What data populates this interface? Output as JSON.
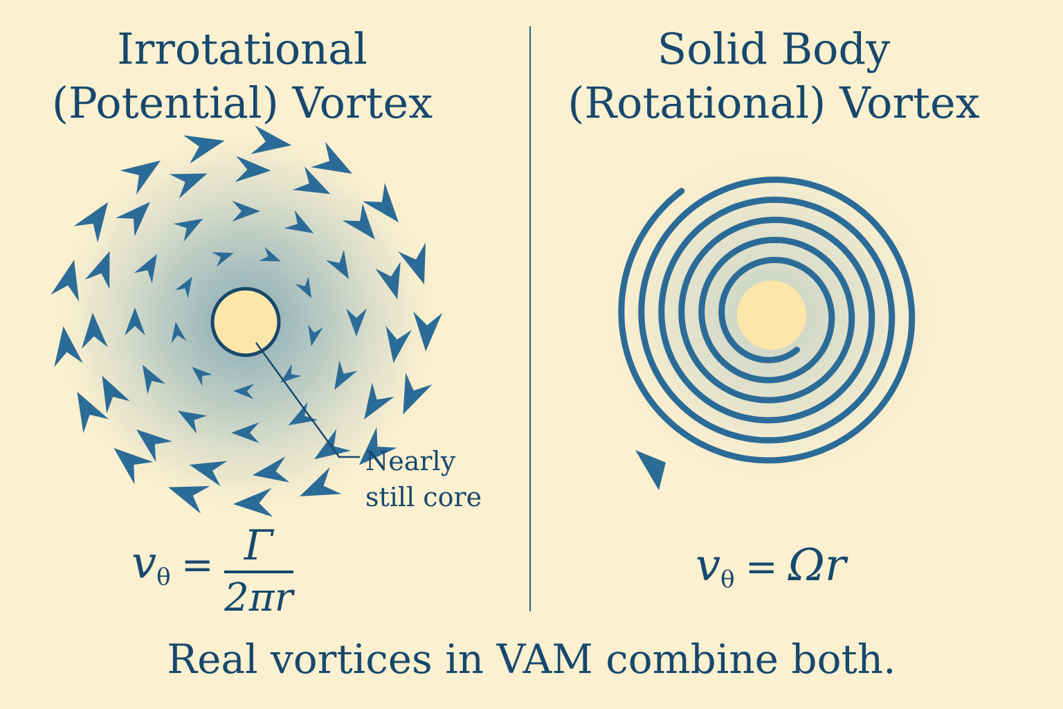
{
  "left_panel": {
    "title_line1": "Irrotational",
    "title_line2": "(Potential) Vortex",
    "callout_line1": "Nearly",
    "callout_line2": "still core",
    "formula": {
      "lhs_var": "v",
      "lhs_sub": "θ",
      "equals": "=",
      "numerator": "Γ",
      "denominator": "2πr"
    }
  },
  "right_panel": {
    "title_line1": "Solid Body",
    "title_line2": "(Rotational) Vortex",
    "formula": {
      "lhs_var": "v",
      "lhs_sub": "θ",
      "equals": "=",
      "rhs": "Ωr"
    }
  },
  "footer": "Real vortices in VAM combine both.",
  "colors": {
    "background": "#fbf0cf",
    "ink": "#17486e",
    "arrow": "#2b6b97",
    "core": "#fde7a8"
  }
}
